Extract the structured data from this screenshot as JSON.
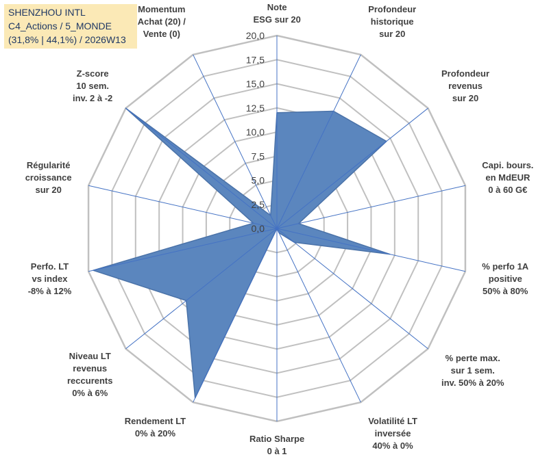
{
  "title": {
    "lines": [
      "SHENZHOU INTL",
      "C4_Actions / 5_MONDE",
      "(31,8% | 44,1%) / 2026W13"
    ]
  },
  "colors": {
    "fill": "#5b86be",
    "fill_stroke": "#4a72a8",
    "spokes": "#4472c4",
    "grid": "#c0c0c0",
    "title_bg": "#fbe9b6",
    "title_text": "#1f3864",
    "label_text": "#404040"
  },
  "chart_data": {
    "type": "radar",
    "scale": {
      "min": 0,
      "max": 20,
      "step": 2.5,
      "grid": true
    },
    "tick_labels": [
      "0,0",
      "2,5",
      "5,0",
      "7,5",
      "10,0",
      "12,5",
      "15,0",
      "17,5",
      "20,0"
    ],
    "axes": [
      {
        "lines": [
          "Note",
          "ESG sur 20"
        ],
        "value": 12.0
      },
      {
        "lines": [
          "Profondeur",
          "historique",
          "sur 20"
        ],
        "value": 13.5
      },
      {
        "lines": [
          "Profondeur",
          "revenus",
          "sur 20"
        ],
        "value": 14.5
      },
      {
        "lines": [
          "Capi. bours.",
          "en MdEUR",
          "0 à 60 G€"
        ],
        "value": 2.3
      },
      {
        "lines": [
          "% perfo 1A",
          "positive",
          "50% à 80%"
        ],
        "value": 12.0
      },
      {
        "lines": [
          "% perte max.",
          "sur 1 sem.",
          "inv. 50% à 20%"
        ],
        "value": 2.3
      },
      {
        "lines": [
          "Volatilité LT",
          "inversée",
          "40% à 0%"
        ],
        "value": 0.5
      },
      {
        "lines": [
          "Ratio Sharpe",
          "0 à 1"
        ],
        "value": 0.0
      },
      {
        "lines": [
          "Rendement LT",
          "0% à 20%"
        ],
        "value": 19.5
      },
      {
        "lines": [
          "Niveau LT",
          "revenus",
          "reccurents",
          "0% à 6%"
        ],
        "value": 12.0
      },
      {
        "lines": [
          "Perfo. LT",
          "vs index",
          "-8% à 12%"
        ],
        "value": 19.5
      },
      {
        "lines": [
          "Régularité",
          "croissance",
          "sur 20"
        ],
        "value": 2.5
      },
      {
        "lines": [
          "Z-score",
          "10 sem.",
          "inv. 2 à -2"
        ],
        "value": 20.0
      },
      {
        "lines": [
          "Momentum",
          "Achat (20) /",
          "Vente (0)"
        ],
        "value": 1.5
      }
    ]
  }
}
